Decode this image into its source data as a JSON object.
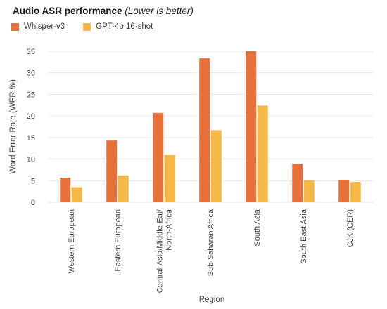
{
  "chart_data": {
    "type": "bar",
    "title": "Audio ASR performance",
    "title_note": "(Lower is better)",
    "xlabel": "Region",
    "ylabel": "Word Error Rate (WER %)",
    "ylim": [
      0,
      35
    ],
    "yticks": [
      0,
      5,
      10,
      15,
      20,
      25,
      30,
      35
    ],
    "grid": true,
    "legend_position": "top-left",
    "categories": [
      "Western European",
      "Eastern European",
      "Central-Asia/Middle-Eat/\nNorth-Africa",
      "Sub-Saharan Africa",
      "South Asia",
      "South East Asia",
      "CJK (CER)"
    ],
    "series": [
      {
        "name": "Whisper-v3",
        "color": "#e8703a",
        "values": [
          5.7,
          14.3,
          20.7,
          33.4,
          35.0,
          8.9,
          5.2
        ]
      },
      {
        "name": "GPT-4o 16-shot",
        "color": "#f5b94a",
        "values": [
          3.5,
          6.2,
          11.0,
          16.7,
          22.4,
          5.1,
          4.7
        ]
      }
    ]
  }
}
